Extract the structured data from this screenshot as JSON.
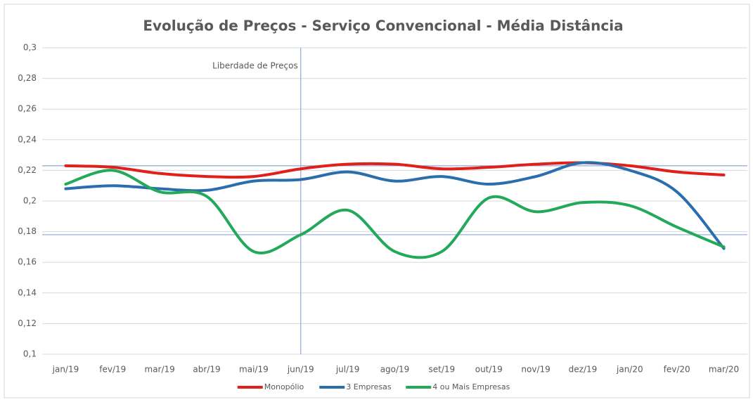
{
  "chart_data": {
    "type": "line",
    "title": "Evolução de Preços - Serviço Convencional - Média Distância",
    "categories": [
      "jan/19",
      "fev/19",
      "mar/19",
      "abr/19",
      "mai/19",
      "jun/19",
      "jul/19",
      "ago/19",
      "set/19",
      "out/19",
      "nov/19",
      "dez/19",
      "jan/20",
      "fev/20",
      "mar/20"
    ],
    "series": [
      {
        "name": "Monopólio",
        "color": "#e0201b",
        "values": [
          0.223,
          0.222,
          0.218,
          0.216,
          0.216,
          0.221,
          0.224,
          0.224,
          0.221,
          0.222,
          0.224,
          0.225,
          0.223,
          0.219,
          0.217
        ]
      },
      {
        "name": "3 Empresas",
        "color": "#2a6ead",
        "values": [
          0.208,
          0.21,
          0.208,
          0.207,
          0.213,
          0.214,
          0.219,
          0.213,
          0.216,
          0.211,
          0.216,
          0.225,
          0.22,
          0.206,
          0.169
        ]
      },
      {
        "name": "4 ou Mais Empresas",
        "color": "#24a85a",
        "values": [
          0.211,
          0.22,
          0.206,
          0.203,
          0.167,
          0.178,
          0.194,
          0.167,
          0.167,
          0.202,
          0.193,
          0.199,
          0.197,
          0.183,
          0.17
        ]
      }
    ],
    "ylim": [
      0.1,
      0.3
    ],
    "yticks": [
      {
        "value": 0.1,
        "label": "0,1"
      },
      {
        "value": 0.12,
        "label": "0,12"
      },
      {
        "value": 0.14,
        "label": "0,14"
      },
      {
        "value": 0.16,
        "label": "0,16"
      },
      {
        "value": 0.18,
        "label": "0,18"
      },
      {
        "value": 0.2,
        "label": "0,2"
      },
      {
        "value": 0.22,
        "label": "0,22"
      },
      {
        "value": 0.24,
        "label": "0,24"
      },
      {
        "value": 0.26,
        "label": "0,26"
      },
      {
        "value": 0.28,
        "label": "0,28"
      },
      {
        "value": 0.3,
        "label": "0,3"
      }
    ],
    "grid": true,
    "reference_lines": [
      0.223,
      0.178
    ],
    "annotation": {
      "text": "Liberdade de Preços",
      "at": "jun/19"
    },
    "smooth": true,
    "legend": "bottom"
  }
}
